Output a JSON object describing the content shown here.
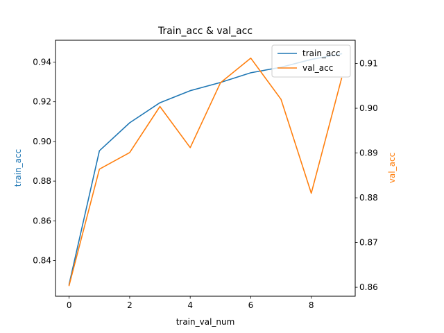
{
  "chart_data": {
    "type": "line",
    "title": "Train_acc & val_acc",
    "xlabel": "train_val_num",
    "ylabel_left": "train_acc",
    "ylabel_right": "val_acc",
    "x": [
      0,
      1,
      2,
      3,
      4,
      5,
      6,
      7,
      8,
      9
    ],
    "xlim": [
      -0.45,
      9.45
    ],
    "xticks": [
      0,
      2,
      4,
      6,
      8
    ],
    "ylim_left": [
      0.822,
      0.951
    ],
    "yticks_left": [
      "0.84",
      "0.86",
      "0.88",
      "0.90",
      "0.92",
      "0.94"
    ],
    "ylim_right": [
      0.858,
      0.9152
    ],
    "yticks_right": [
      "0.86",
      "0.87",
      "0.88",
      "0.89",
      "0.90",
      "0.91"
    ],
    "grid": false,
    "legend_position": "top-right",
    "series": [
      {
        "name": "train_acc",
        "axis": "left",
        "color": "#1f77b4",
        "values": [
          0.828,
          0.8953,
          0.9094,
          0.9195,
          0.9256,
          0.9297,
          0.9346,
          0.9374,
          0.9413,
          0.9442
        ]
      },
      {
        "name": "val_acc",
        "axis": "right",
        "color": "#ff7f0e",
        "values": [
          0.8604,
          0.8864,
          0.8901,
          0.9004,
          0.8912,
          0.9057,
          0.9112,
          0.902,
          0.881,
          0.9067
        ]
      }
    ]
  }
}
